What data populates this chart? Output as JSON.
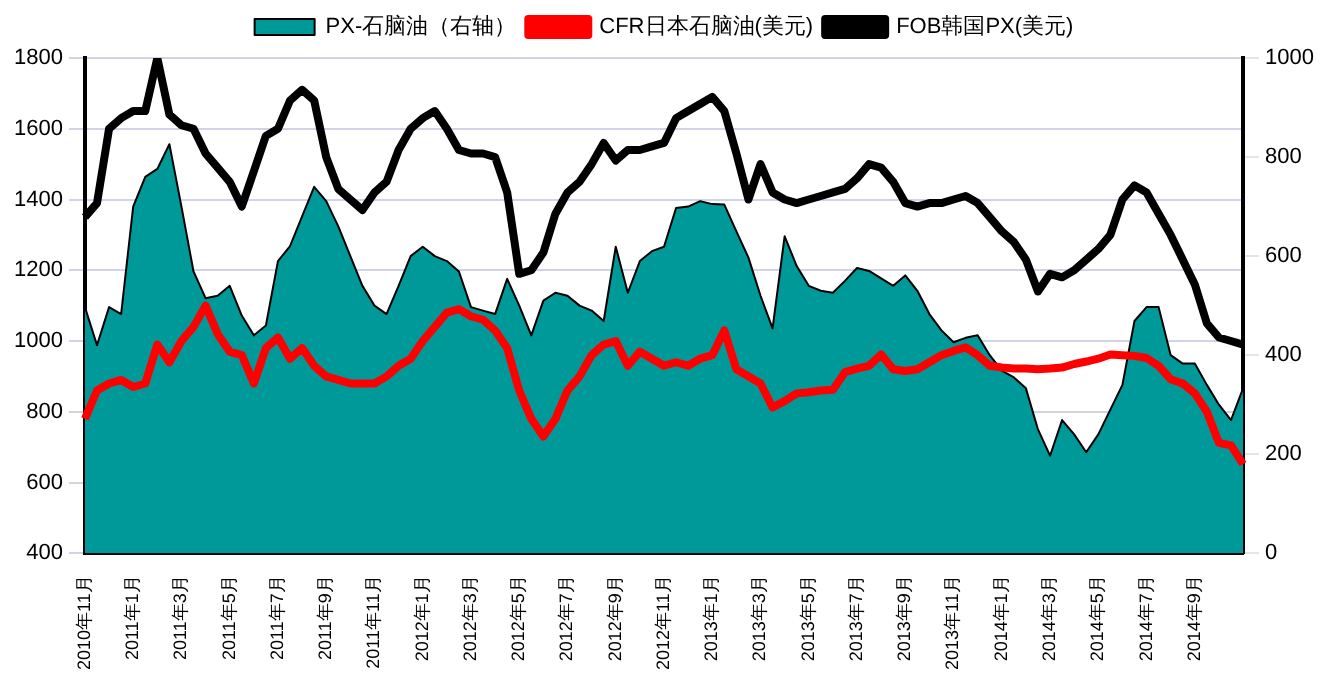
{
  "chart_data": {
    "type": "line",
    "categories": [
      "2010年11月",
      null,
      null,
      null,
      "2011年1月",
      null,
      null,
      null,
      "2011年3月",
      null,
      null,
      null,
      "2011年5月",
      null,
      null,
      null,
      "2011年7月",
      null,
      null,
      null,
      "2011年9月",
      null,
      null,
      null,
      "2011年11月",
      null,
      null,
      null,
      "2012年1月",
      null,
      null,
      null,
      "2012年3月",
      null,
      null,
      null,
      "2012年5月",
      null,
      null,
      null,
      "2012年7月",
      null,
      null,
      null,
      "2012年9月",
      null,
      null,
      null,
      "2012年11月",
      null,
      null,
      null,
      "2013年1月",
      null,
      null,
      null,
      "2013年3月",
      null,
      null,
      null,
      "2013年5月",
      null,
      null,
      null,
      "2013年7月",
      null,
      null,
      null,
      "2013年9月",
      null,
      null,
      null,
      "2013年11月",
      null,
      null,
      null,
      "2014年1月",
      null,
      null,
      null,
      "2014年3月",
      null,
      null,
      null,
      "2014年5月",
      null,
      null,
      null,
      "2014年7月",
      null,
      null,
      null,
      "2014年9月",
      null,
      null,
      null,
      null
    ],
    "series": [
      {
        "name": "PX-石脑油（右轴）",
        "type": "area",
        "axis": "y2",
        "color": "#009999",
        "values": [
          497,
          420,
          497,
          483,
          700,
          760,
          776,
          826,
          700,
          569,
          515,
          520,
          540,
          480,
          440,
          460,
          590,
          620,
          680,
          740,
          711,
          660,
          600,
          540,
          500,
          483,
          540,
          600,
          619,
          600,
          590,
          569,
          497,
          490,
          483,
          554,
          500,
          440,
          510,
          526,
          520,
          500,
          490,
          469,
          619,
          526,
          590,
          610,
          619,
          697,
          700,
          711,
          705,
          704,
          650,
          597,
          520,
          454,
          640,
          580,
          540,
          530,
          526,
          550,
          576,
          570,
          555,
          540,
          561,
          530,
          483,
          450,
          426,
          435,
          440,
          400,
          369,
          355,
          333,
          250,
          197,
          269,
          240,
          204,
          240,
          290,
          340,
          469,
          497,
          497,
          400,
          383,
          383,
          340,
          300,
          269,
          333
        ]
      },
      {
        "name": "CFR日本石脑油(美元)",
        "color": "#ff0000",
        "values": [
          780,
          860,
          880,
          890,
          870,
          880,
          990,
          940,
          1000,
          1040,
          1100,
          1020,
          970,
          960,
          880,
          980,
          1010,
          950,
          980,
          930,
          900,
          890,
          880,
          880,
          880,
          900,
          930,
          950,
          1000,
          1040,
          1080,
          1090,
          1070,
          1060,
          1030,
          980,
          860,
          780,
          730,
          780,
          860,
          900,
          960,
          990,
          1000,
          930,
          970,
          950,
          930,
          940,
          930,
          950,
          960,
          1030,
          920,
          900,
          880,
          812,
          830,
          852,
          855,
          860,
          862,
          912,
          922,
          930,
          962,
          920,
          915,
          920,
          940,
          960,
          972,
          982,
          960,
          930,
          925,
          922,
          922,
          920,
          922,
          925,
          935,
          942,
          950,
          962,
          960,
          958,
          952,
          930,
          892,
          880,
          852,
          800,
          712,
          705,
          652
        ]
      },
      {
        "name": "FOB韩国PX(美元)",
        "color": "#000000",
        "values": [
          1350,
          1390,
          1600,
          1630,
          1650,
          1650,
          1800,
          1640,
          1610,
          1600,
          1530,
          1490,
          1450,
          1380,
          1480,
          1580,
          1600,
          1680,
          1710,
          1680,
          1520,
          1430,
          1400,
          1370,
          1420,
          1450,
          1540,
          1600,
          1630,
          1650,
          1600,
          1540,
          1530,
          1530,
          1520,
          1420,
          1190,
          1200,
          1250,
          1360,
          1420,
          1450,
          1500,
          1560,
          1510,
          1540,
          1540,
          1550,
          1560,
          1630,
          1650,
          1670,
          1690,
          1650,
          1530,
          1400,
          1500,
          1420,
          1400,
          1390,
          1400,
          1410,
          1420,
          1430,
          1460,
          1500,
          1490,
          1450,
          1390,
          1380,
          1390,
          1390,
          1400,
          1410,
          1390,
          1350,
          1310,
          1280,
          1230,
          1140,
          1190,
          1180,
          1200,
          1230,
          1260,
          1300,
          1400,
          1440,
          1420,
          1360,
          1300,
          1230,
          1160,
          1050,
          1010,
          1000,
          990
        ]
      }
    ],
    "ylim": [
      400,
      1800
    ],
    "yticks": [
      400,
      600,
      800,
      1000,
      1200,
      1400,
      1600,
      1800
    ],
    "y2lim": [
      0,
      1000
    ],
    "y2ticks": [
      0,
      200,
      400,
      600,
      800,
      1000
    ],
    "grid": "y",
    "legend": "top",
    "marker": "none",
    "line_style": "solid"
  }
}
